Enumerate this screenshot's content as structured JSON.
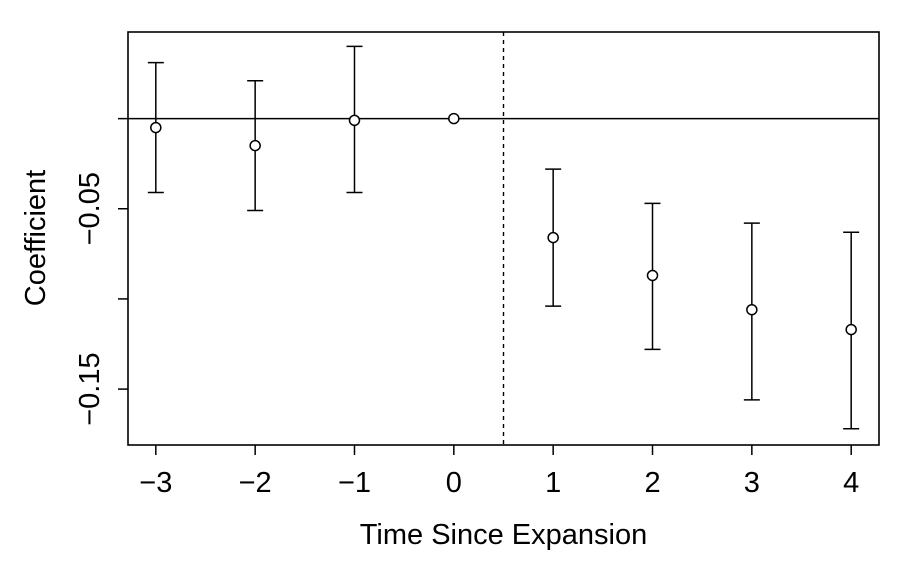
{
  "chart_data": {
    "type": "scatter",
    "subtype": "event-study coefficient plot with error bars",
    "xlabel": "Time Since Expansion",
    "ylabel": "Coefficient",
    "x": [
      -3,
      -2,
      -1,
      0,
      1,
      2,
      3,
      4
    ],
    "x_tick_labels": [
      "−3",
      "−2",
      "−1",
      "0",
      "1",
      "2",
      "3",
      "4"
    ],
    "y_ticks": [
      -0.05,
      -0.15
    ],
    "y_tick_labels": [
      "−0.05",
      "−0.15"
    ],
    "y_minor_ticks": [
      -0.1
    ],
    "xlim": [
      -3.28,
      4.28
    ],
    "ylim": [
      -0.181,
      0.048
    ],
    "series": [
      {
        "estimate": [
          -0.005,
          -0.015,
          -0.001,
          0.0,
          -0.066,
          -0.087,
          -0.106,
          -0.117
        ],
        "ci_lower": [
          -0.041,
          -0.051,
          -0.041,
          null,
          -0.104,
          -0.128,
          -0.156,
          -0.172
        ],
        "ci_upper": [
          0.031,
          0.021,
          0.04,
          null,
          -0.028,
          -0.047,
          -0.058,
          -0.063
        ]
      }
    ],
    "reference_lines": {
      "horizontal_y": 0,
      "vertical_dashed_x": 0.5
    },
    "grid": false,
    "legend": "none"
  }
}
